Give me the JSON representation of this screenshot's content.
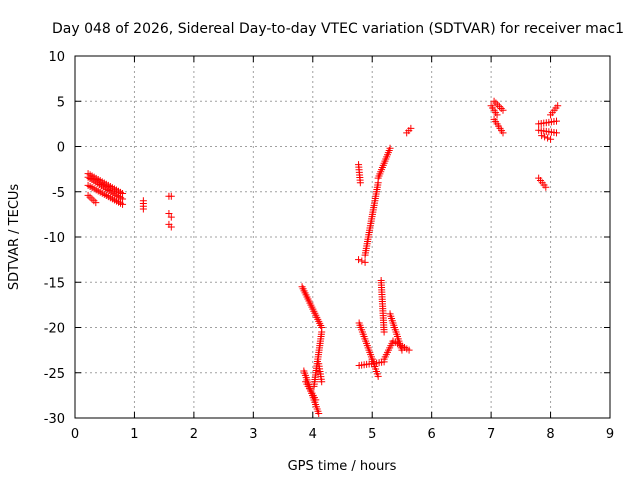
{
  "chart_data": {
    "type": "scatter",
    "title": "Day 048 of 2026, Sidereal Day-to-day VTEC variation (SDTVAR) for receiver mac1",
    "xlabel": "GPS time / hours",
    "ylabel": "SDTVAR / TECUs",
    "xlim": [
      0,
      9
    ],
    "ylim": [
      -30,
      10
    ],
    "xticks": [
      "0",
      "1",
      "2",
      "3",
      "4",
      "5",
      "6",
      "7",
      "8",
      "9"
    ],
    "yticks": [
      "10",
      "5",
      "0",
      "-5",
      "-10",
      "-15",
      "-20",
      "-25",
      "-30"
    ],
    "xtick_values": [
      0,
      1,
      2,
      3,
      4,
      5,
      6,
      7,
      8,
      9
    ],
    "ytick_values": [
      10,
      5,
      0,
      -5,
      -10,
      -15,
      -20,
      -25,
      -30
    ],
    "grid": true,
    "marker": "+",
    "color": "#ff0000",
    "segments": [
      {
        "x": [
          0.22,
          0.8
        ],
        "y": [
          -3.0,
          -5.2
        ]
      },
      {
        "x": [
          0.22,
          0.8
        ],
        "y": [
          -3.4,
          -5.8
        ]
      },
      {
        "x": [
          0.22,
          0.8
        ],
        "y": [
          -4.3,
          -6.4
        ]
      },
      {
        "x": [
          0.22,
          0.35
        ],
        "y": [
          -5.4,
          -6.2
        ]
      },
      {
        "x": [
          1.15,
          1.15
        ],
        "y": [
          -6.0,
          -6.9
        ]
      },
      {
        "x": [
          1.58,
          1.62
        ],
        "y": [
          -5.5,
          -5.5
        ]
      },
      {
        "x": [
          1.58,
          1.62
        ],
        "y": [
          -7.4,
          -7.8
        ]
      },
      {
        "x": [
          1.58,
          1.62
        ],
        "y": [
          -8.6,
          -8.9
        ]
      },
      {
        "x": [
          3.82,
          4.15
        ],
        "y": [
          -15.5,
          -20.0
        ]
      },
      {
        "x": [
          3.85,
          4.1
        ],
        "y": [
          -24.8,
          -29.5
        ]
      },
      {
        "x": [
          3.88,
          4.05
        ],
        "y": [
          -26.0,
          -28.0
        ]
      },
      {
        "x": [
          4.02,
          4.15
        ],
        "y": [
          -26.5,
          -20.5
        ]
      },
      {
        "x": [
          4.1,
          4.15
        ],
        "y": [
          -24.0,
          -26.0
        ]
      },
      {
        "x": [
          4.77,
          4.8
        ],
        "y": [
          -2.0,
          -4.0
        ]
      },
      {
        "x": [
          4.77,
          4.88
        ],
        "y": [
          -12.5,
          -12.8
        ]
      },
      {
        "x": [
          4.88,
          5.1
        ],
        "y": [
          -12.0,
          -4.0
        ]
      },
      {
        "x": [
          5.1,
          5.3
        ],
        "y": [
          -3.5,
          -0.2
        ]
      },
      {
        "x": [
          4.78,
          5.0
        ],
        "y": [
          -19.5,
          -23.5
        ]
      },
      {
        "x": [
          4.78,
          5.2
        ],
        "y": [
          -24.2,
          -23.8
        ]
      },
      {
        "x": [
          5.0,
          5.1
        ],
        "y": [
          -23.5,
          -25.4
        ]
      },
      {
        "x": [
          5.15,
          5.2
        ],
        "y": [
          -14.8,
          -20.5
        ]
      },
      {
        "x": [
          5.2,
          5.35
        ],
        "y": [
          -23.5,
          -21.5
        ]
      },
      {
        "x": [
          5.35,
          5.62
        ],
        "y": [
          -21.5,
          -22.5
        ]
      },
      {
        "x": [
          5.3,
          5.5
        ],
        "y": [
          -18.5,
          -22.5
        ]
      },
      {
        "x": [
          5.58,
          5.65
        ],
        "y": [
          1.5,
          2.0
        ]
      },
      {
        "x": [
          7.0,
          7.1
        ],
        "y": [
          4.5,
          3.5
        ]
      },
      {
        "x": [
          7.05,
          7.2
        ],
        "y": [
          5.0,
          4.0
        ]
      },
      {
        "x": [
          7.05,
          7.2
        ],
        "y": [
          3.0,
          1.5
        ]
      },
      {
        "x": [
          7.8,
          7.92
        ],
        "y": [
          -3.5,
          -4.5
        ]
      },
      {
        "x": [
          7.8,
          8.1
        ],
        "y": [
          2.5,
          2.8
        ]
      },
      {
        "x": [
          7.8,
          8.1
        ],
        "y": [
          1.8,
          1.5
        ]
      },
      {
        "x": [
          7.85,
          8.0
        ],
        "y": [
          1.2,
          0.8
        ]
      },
      {
        "x": [
          8.0,
          8.12
        ],
        "y": [
          3.5,
          4.5
        ]
      }
    ]
  }
}
